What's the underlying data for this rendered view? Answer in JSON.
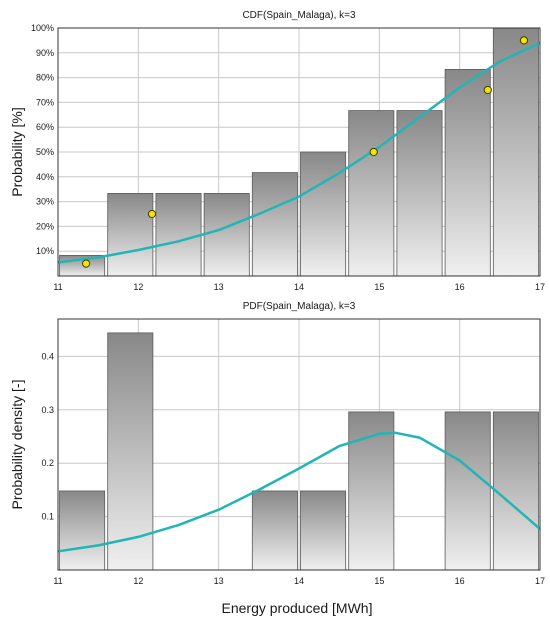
{
  "colors": {
    "curve": "#22b5b5",
    "marker_fill": "#f5e400",
    "marker_stroke": "#3a3a00",
    "bar_stroke": "#5a5a5a",
    "bar_top": "#888888",
    "bar_bottom": "#f0f0f0",
    "grid": "#c8c8c8",
    "frame": "#333333"
  },
  "xlabel": "Energy produced [MWh]",
  "chart_data": [
    {
      "type": "bar",
      "title": "CDF(Spain_Malaga), k=3",
      "ylabel": "Probability [%]",
      "xlim": [
        11,
        17
      ],
      "ylim": [
        0,
        100
      ],
      "x_ticks": [
        "11",
        "12",
        "13",
        "14",
        "15",
        "16",
        "17"
      ],
      "y_ticks": [
        {
          "v": 10,
          "label": "10%"
        },
        {
          "v": 20,
          "label": "20%"
        },
        {
          "v": 30,
          "label": "30%"
        },
        {
          "v": 40,
          "label": "40%"
        },
        {
          "v": 50,
          "label": "50%"
        },
        {
          "v": 60,
          "label": "60%"
        },
        {
          "v": 70,
          "label": "70%"
        },
        {
          "v": 80,
          "label": "80%"
        },
        {
          "v": 90,
          "label": "90%"
        },
        {
          "v": 100,
          "label": "100%"
        }
      ],
      "grid": true,
      "bars": [
        {
          "x0": 11.0,
          "x1": 11.6,
          "y": 8.3
        },
        {
          "x0": 11.6,
          "x1": 12.2,
          "y": 33.3
        },
        {
          "x0": 12.2,
          "x1": 12.8,
          "y": 33.3
        },
        {
          "x0": 12.8,
          "x1": 13.4,
          "y": 33.3
        },
        {
          "x0": 13.4,
          "x1": 14.0,
          "y": 41.7
        },
        {
          "x0": 14.0,
          "x1": 14.6,
          "y": 50.0
        },
        {
          "x0": 14.6,
          "x1": 15.2,
          "y": 66.7
        },
        {
          "x0": 15.2,
          "x1": 15.8,
          "y": 66.7
        },
        {
          "x0": 15.8,
          "x1": 16.4,
          "y": 83.3
        },
        {
          "x0": 16.4,
          "x1": 17.0,
          "y": 100.0
        }
      ],
      "points": [
        {
          "x": 11.35,
          "y": 5
        },
        {
          "x": 12.17,
          "y": 25
        },
        {
          "x": 14.93,
          "y": 50
        },
        {
          "x": 16.35,
          "y": 75
        },
        {
          "x": 16.8,
          "y": 95
        }
      ],
      "curve": [
        [
          11.0,
          5.5
        ],
        [
          11.5,
          7.5
        ],
        [
          12.0,
          10.5
        ],
        [
          12.5,
          14.0
        ],
        [
          13.0,
          18.5
        ],
        [
          13.5,
          25.0
        ],
        [
          14.0,
          32.0
        ],
        [
          14.5,
          41.5
        ],
        [
          15.0,
          52.0
        ],
        [
          15.5,
          64.0
        ],
        [
          16.0,
          76.0
        ],
        [
          16.5,
          86.5
        ],
        [
          17.0,
          94.0
        ]
      ]
    },
    {
      "type": "bar",
      "title": "PDF(Spain_Malaga), k=3",
      "ylabel": "Probability density [-]",
      "xlim": [
        11,
        17
      ],
      "ylim": [
        0,
        0.47
      ],
      "x_ticks": [
        "11",
        "12",
        "13",
        "14",
        "15",
        "16",
        "17"
      ],
      "y_ticks": [
        {
          "v": 0.1,
          "label": "0.1"
        },
        {
          "v": 0.2,
          "label": "0.2"
        },
        {
          "v": 0.3,
          "label": "0.3"
        },
        {
          "v": 0.4,
          "label": "0.4"
        }
      ],
      "grid": true,
      "bars": [
        {
          "x0": 11.0,
          "x1": 11.6,
          "y": 0.148
        },
        {
          "x0": 11.6,
          "x1": 12.2,
          "y": 0.444
        },
        {
          "x0": 13.4,
          "x1": 14.0,
          "y": 0.148
        },
        {
          "x0": 14.0,
          "x1": 14.6,
          "y": 0.148
        },
        {
          "x0": 14.6,
          "x1": 15.2,
          "y": 0.296
        },
        {
          "x0": 15.8,
          "x1": 16.4,
          "y": 0.296
        },
        {
          "x0": 16.4,
          "x1": 17.0,
          "y": 0.296
        }
      ],
      "points": [],
      "curve": [
        [
          11.0,
          0.035
        ],
        [
          11.5,
          0.046
        ],
        [
          12.0,
          0.062
        ],
        [
          12.5,
          0.084
        ],
        [
          13.0,
          0.113
        ],
        [
          13.5,
          0.15
        ],
        [
          14.0,
          0.19
        ],
        [
          14.5,
          0.232
        ],
        [
          15.0,
          0.255
        ],
        [
          15.2,
          0.257
        ],
        [
          15.5,
          0.248
        ],
        [
          16.0,
          0.205
        ],
        [
          16.5,
          0.142
        ],
        [
          17.0,
          0.077
        ]
      ]
    }
  ]
}
